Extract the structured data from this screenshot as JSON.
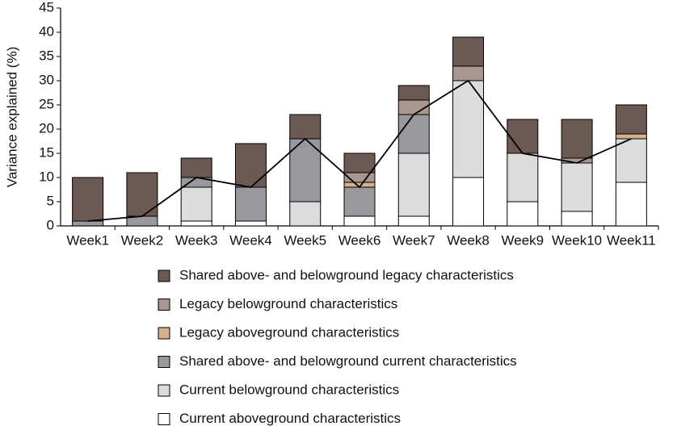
{
  "chart_data": {
    "type": "bar",
    "stacked": true,
    "y_label": "Variance explained (%)",
    "categories": [
      "Week1",
      "Week2",
      "Week3",
      "Week4",
      "Week5",
      "Week6",
      "Week7",
      "Week8",
      "Week9",
      "Week10",
      "Week11"
    ],
    "series": [
      {
        "name": "Current aboveground characteristics",
        "color": "#ffffff",
        "values": [
          0,
          0,
          1,
          1,
          0,
          2,
          2,
          10,
          5,
          3,
          9
        ]
      },
      {
        "name": "Current belowground characteristics",
        "color": "#dcdcdf",
        "values": [
          0,
          0,
          7,
          0,
          5,
          0,
          13,
          20,
          10,
          10,
          9
        ]
      },
      {
        "name": "Shared above- and belowground current characteristics",
        "color": "#98989e",
        "values": [
          1,
          2,
          2,
          7,
          13,
          6,
          8,
          0,
          0,
          0,
          0
        ]
      },
      {
        "name": "Legacy aboveground characteristics",
        "color": "#d4b08c",
        "values": [
          0,
          0,
          0,
          0,
          0,
          1,
          0,
          0,
          0,
          0,
          1
        ]
      },
      {
        "name": "Legacy belowground characteristics",
        "color": "#a8978e",
        "values": [
          0,
          0,
          0,
          0,
          0,
          2,
          3,
          3,
          0,
          1,
          0
        ]
      },
      {
        "name": "Shared above- and belowground legacy characteristics",
        "color": "#6b5a52",
        "values": [
          9,
          9,
          4,
          9,
          5,
          4,
          3,
          6,
          7,
          8,
          6
        ]
      }
    ],
    "line": {
      "color": "#000000",
      "values": [
        1,
        2,
        10,
        8,
        18,
        8,
        23,
        30,
        15,
        13,
        18
      ]
    },
    "legend_order": "reverse",
    "ylim": [
      0,
      45
    ],
    "yticks": [
      0,
      5,
      10,
      15,
      20,
      25,
      30,
      35,
      40,
      45
    ]
  }
}
